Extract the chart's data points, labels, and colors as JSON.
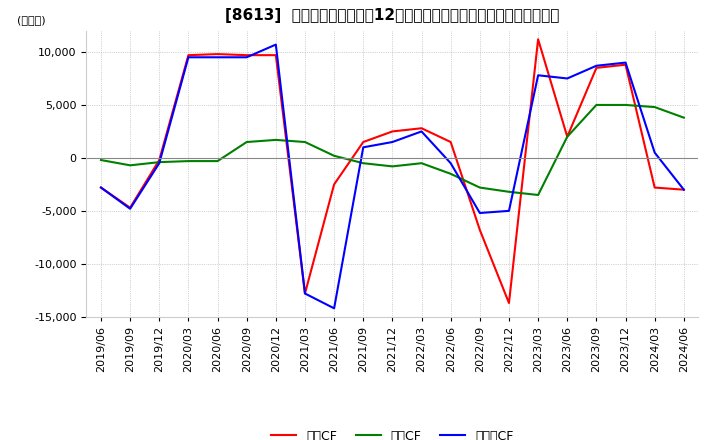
{
  "title": "[8613]  キャッシュフローの12か月移動合計の対前年同期増減額の推移",
  "ylabel": "(百万円)",
  "ylim": [
    -15000,
    12000
  ],
  "yticks": [
    -15000,
    -10000,
    -5000,
    0,
    5000,
    10000
  ],
  "legend_labels": [
    "営業CF",
    "投資CF",
    "フリーCF"
  ],
  "line_colors": [
    "#ff0000",
    "#008000",
    "#0000ff"
  ],
  "dates": [
    "2019/06",
    "2019/09",
    "2019/12",
    "2020/03",
    "2020/06",
    "2020/09",
    "2020/12",
    "2021/03",
    "2021/06",
    "2021/09",
    "2021/12",
    "2022/03",
    "2022/06",
    "2022/09",
    "2022/12",
    "2023/03",
    "2023/06",
    "2023/09",
    "2023/12",
    "2024/03",
    "2024/06"
  ],
  "operating_cf": [
    -2800,
    -4700,
    -200,
    9700,
    9800,
    9700,
    9700,
    -12800,
    -2500,
    1500,
    2500,
    2800,
    1500,
    -6800,
    -13700,
    11200,
    2000,
    8500,
    8800,
    -2800,
    -3000
  ],
  "investing_cf": [
    -200,
    -700,
    -400,
    -300,
    -300,
    1500,
    1700,
    1500,
    200,
    -500,
    -800,
    -500,
    -1500,
    -2800,
    -3200,
    -3500,
    2000,
    5000,
    5000,
    4800,
    3800
  ],
  "free_cf": [
    -2800,
    -4800,
    -500,
    9500,
    9500,
    9500,
    10700,
    -12800,
    -14200,
    1000,
    1500,
    2500,
    -500,
    -5200,
    -5000,
    7800,
    7500,
    8700,
    9000,
    500,
    -3000
  ],
  "background_color": "#ffffff",
  "grid_color": "#aaaaaa",
  "title_fontsize": 11,
  "axis_fontsize": 8
}
